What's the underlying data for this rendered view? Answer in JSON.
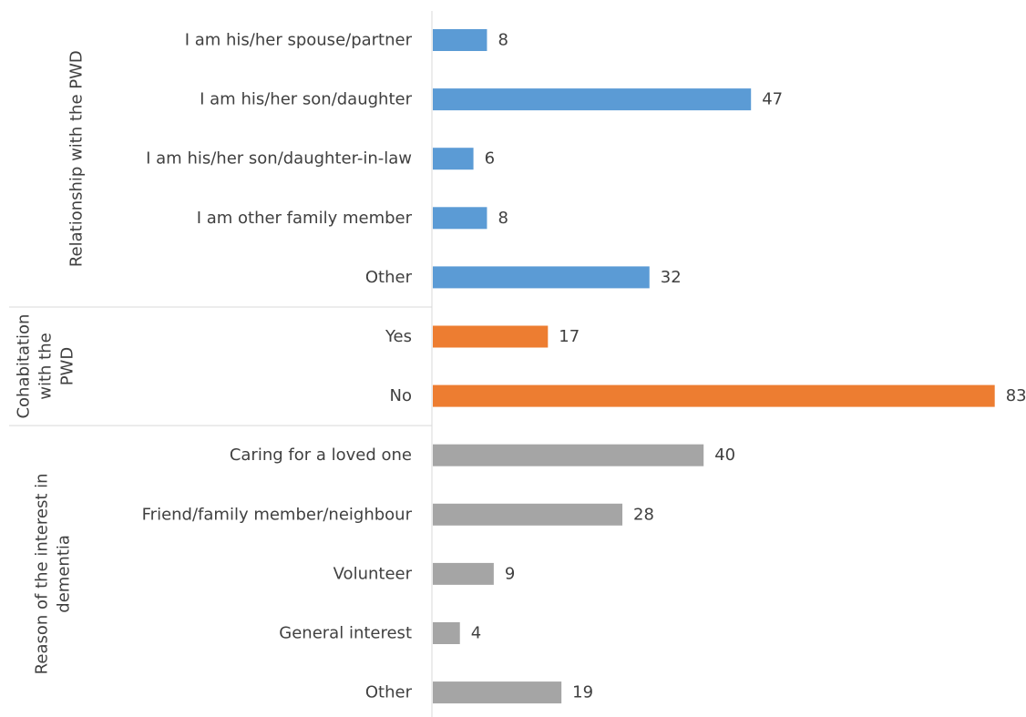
{
  "chart_data": {
    "type": "bar",
    "orientation": "horizontal",
    "title": "",
    "xlabel": "",
    "ylabel": "",
    "xlim": [
      0,
      83
    ],
    "grid": false,
    "legend": "none",
    "groups": [
      {
        "name": "Relationship with the PWD",
        "color": "#5B9BD5",
        "categories": [
          "I am his/her spouse/partner",
          "I am his/her son/daughter",
          "I am his/her son/daughter-in-law",
          "I am other family member",
          "Other"
        ],
        "values": [
          8,
          47,
          6,
          8,
          32
        ]
      },
      {
        "name": "Cohabitation with the PWD",
        "name_lines": [
          "Cohabitation",
          "with the",
          "PWD"
        ],
        "color": "#ED7D31",
        "categories": [
          "Yes",
          "No"
        ],
        "values": [
          17,
          83
        ]
      },
      {
        "name": "Reason of the interest in dementia",
        "name_lines": [
          "Reason of the interest in",
          "dementia"
        ],
        "color": "#A5A5A5",
        "categories": [
          "Caring for a loved one",
          "Friend/family member/neighbour",
          "Volunteer",
          "General interest",
          "Other"
        ],
        "values": [
          40,
          28,
          9,
          4,
          19
        ]
      }
    ]
  }
}
